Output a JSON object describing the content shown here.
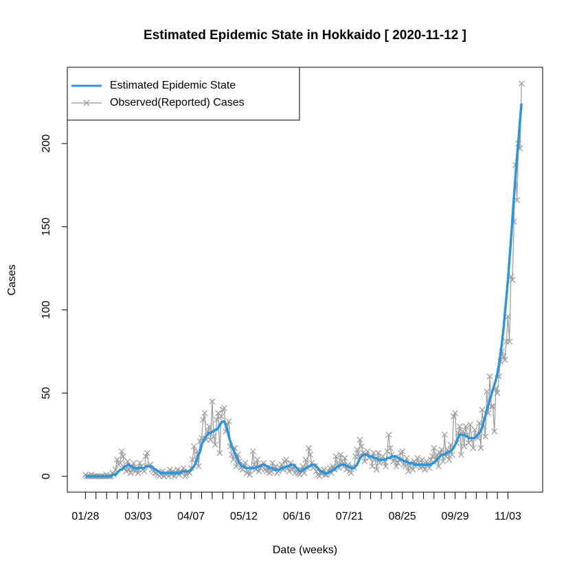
{
  "chart_data": {
    "type": "line",
    "title": "Estimated Epidemic State in Hokkaido [ 2020-11-12 ]",
    "x_label": "Date (weeks)",
    "y_label": "Cases",
    "x": [
      "01/28",
      "01/29",
      "01/30",
      "01/31",
      "02/01",
      "02/02",
      "02/03",
      "02/04",
      "02/05",
      "02/06",
      "02/07",
      "02/08",
      "02/09",
      "02/10",
      "02/11",
      "02/12",
      "02/13",
      "02/14",
      "02/15",
      "02/16",
      "02/17",
      "02/18",
      "02/19",
      "02/20",
      "02/21",
      "02/22",
      "02/23",
      "02/24",
      "02/25",
      "02/26",
      "02/27",
      "02/28",
      "02/29",
      "03/01",
      "03/02",
      "03/03",
      "03/04",
      "03/05",
      "03/06",
      "03/07",
      "03/08",
      "03/09",
      "03/10",
      "03/11",
      "03/12",
      "03/13",
      "03/14",
      "03/15",
      "03/16",
      "03/17",
      "03/18",
      "03/19",
      "03/20",
      "03/21",
      "03/22",
      "03/23",
      "03/24",
      "03/25",
      "03/26",
      "03/27",
      "03/28",
      "03/29",
      "03/30",
      "03/31",
      "04/01",
      "04/02",
      "04/03",
      "04/04",
      "04/05",
      "04/06",
      "04/07",
      "04/08",
      "04/09",
      "04/10",
      "04/11",
      "04/12",
      "04/13",
      "04/14",
      "04/15",
      "04/16",
      "04/17",
      "04/18",
      "04/19",
      "04/20",
      "04/21",
      "04/22",
      "04/23",
      "04/24",
      "04/25",
      "04/26",
      "04/27",
      "04/28",
      "04/29",
      "04/30",
      "05/01",
      "05/02",
      "05/03",
      "05/04",
      "05/05",
      "05/06",
      "05/07",
      "05/08",
      "05/09",
      "05/10",
      "05/11",
      "05/12",
      "05/13",
      "05/14",
      "05/15",
      "05/16",
      "05/17",
      "05/18",
      "05/19",
      "05/20",
      "05/21",
      "05/22",
      "05/23",
      "05/24",
      "05/25",
      "05/26",
      "05/27",
      "05/28",
      "05/29",
      "05/30",
      "05/31",
      "06/01",
      "06/02",
      "06/03",
      "06/04",
      "06/05",
      "06/06",
      "06/07",
      "06/08",
      "06/09",
      "06/10",
      "06/11",
      "06/12",
      "06/13",
      "06/14",
      "06/15",
      "06/16",
      "06/17",
      "06/18",
      "06/19",
      "06/20",
      "06/21",
      "06/22",
      "06/23",
      "06/24",
      "06/25",
      "06/26",
      "06/27",
      "06/28",
      "06/29",
      "06/30",
      "07/01",
      "07/02",
      "07/03",
      "07/04",
      "07/05",
      "07/06",
      "07/07",
      "07/08",
      "07/09",
      "07/10",
      "07/11",
      "07/12",
      "07/13",
      "07/14",
      "07/15",
      "07/16",
      "07/17",
      "07/18",
      "07/19",
      "07/20",
      "07/21",
      "07/22",
      "07/23",
      "07/24",
      "07/25",
      "07/26",
      "07/27",
      "07/28",
      "07/29",
      "07/30",
      "07/31",
      "08/01",
      "08/02",
      "08/03",
      "08/04",
      "08/05",
      "08/06",
      "08/07",
      "08/08",
      "08/09",
      "08/10",
      "08/11",
      "08/12",
      "08/13",
      "08/14",
      "08/15",
      "08/16",
      "08/17",
      "08/18",
      "08/19",
      "08/20",
      "08/21",
      "08/22",
      "08/23",
      "08/24",
      "08/25",
      "08/26",
      "08/27",
      "08/28",
      "08/29",
      "08/30",
      "08/31",
      "09/01",
      "09/02",
      "09/03",
      "09/04",
      "09/05",
      "09/06",
      "09/07",
      "09/08",
      "09/09",
      "09/10",
      "09/11",
      "09/12",
      "09/13",
      "09/14",
      "09/15",
      "09/16",
      "09/17",
      "09/18",
      "09/19",
      "09/20",
      "09/21",
      "09/22",
      "09/23",
      "09/24",
      "09/25",
      "09/26",
      "09/27",
      "09/28",
      "09/29",
      "09/30",
      "10/01",
      "10/02",
      "10/03",
      "10/04",
      "10/05",
      "10/06",
      "10/07",
      "10/08",
      "10/09",
      "10/10",
      "10/11",
      "10/12",
      "10/13",
      "10/14",
      "10/15",
      "10/16",
      "10/17",
      "10/18",
      "10/19",
      "10/20",
      "10/21",
      "10/22",
      "10/23",
      "10/24",
      "10/25",
      "10/26",
      "10/27",
      "10/28",
      "10/29",
      "10/30",
      "10/31",
      "11/01",
      "11/02",
      "11/03",
      "11/04",
      "11/05",
      "11/06",
      "11/07",
      "11/08",
      "11/09",
      "11/10",
      "11/11",
      "11/12"
    ],
    "series": [
      {
        "name": "Estimated Epidemic State",
        "color": "#2b95de",
        "values": [
          0,
          0,
          0,
          0,
          0,
          0,
          0,
          0,
          0,
          0,
          0,
          0,
          0,
          0,
          0,
          0,
          0,
          0,
          1,
          1,
          1,
          2,
          3,
          4,
          4,
          5,
          6,
          6,
          7,
          7,
          6,
          6,
          5,
          5,
          5,
          5,
          5,
          5,
          5,
          5,
          6,
          6,
          6,
          6,
          6,
          5,
          4,
          4,
          3,
          3,
          2,
          2,
          2,
          2,
          2,
          2,
          2,
          2,
          2,
          2,
          2,
          2,
          2,
          2,
          3,
          3,
          3,
          3,
          3,
          3,
          4,
          5,
          6,
          8,
          10,
          13,
          15,
          19,
          21,
          23,
          24,
          25,
          26,
          26,
          27,
          27,
          28,
          28,
          29,
          31,
          32,
          33,
          33,
          31,
          28,
          24,
          21,
          18,
          16,
          14,
          12,
          10,
          8,
          7,
          6,
          6,
          5,
          5,
          5,
          5,
          5,
          5,
          5,
          5,
          6,
          6,
          6,
          7,
          7,
          7,
          6,
          6,
          5,
          5,
          5,
          4,
          4,
          4,
          4,
          4,
          5,
          5,
          5,
          6,
          6,
          6,
          7,
          7,
          7,
          6,
          5,
          4,
          3,
          3,
          4,
          4,
          5,
          5,
          6,
          6,
          7,
          7,
          7,
          6,
          5,
          4,
          3,
          3,
          2,
          2,
          2,
          2,
          3,
          3,
          4,
          4,
          5,
          6,
          6,
          7,
          7,
          7,
          7,
          6,
          6,
          6,
          5,
          5,
          5,
          6,
          7,
          9,
          11,
          12,
          13,
          13,
          13,
          13,
          12,
          12,
          12,
          11,
          11,
          11,
          10,
          10,
          10,
          10,
          10,
          10,
          11,
          11,
          11,
          12,
          12,
          12,
          12,
          11,
          11,
          10,
          10,
          9,
          9,
          9,
          8,
          8,
          8,
          8,
          7,
          7,
          7,
          7,
          7,
          7,
          7,
          7,
          7,
          7,
          7,
          7,
          8,
          8,
          9,
          10,
          11,
          12,
          13,
          13,
          13,
          14,
          14,
          15,
          15,
          16,
          17,
          19,
          21,
          23,
          25,
          25,
          25,
          25,
          24,
          24,
          23,
          23,
          23,
          23,
          23,
          24,
          25,
          26,
          27,
          30,
          33,
          36,
          40,
          43,
          46,
          49,
          52,
          55,
          58,
          62,
          67,
          73,
          80,
          88,
          98,
          108,
          118,
          130,
          142,
          155,
          168,
          180,
          192,
          202,
          214,
          224
        ]
      },
      {
        "name": "Observed(Reported) Cases",
        "color": "#a0a0a0",
        "values": [
          1,
          0,
          0,
          0,
          1,
          0,
          0,
          0,
          0,
          0,
          0,
          0,
          0,
          0,
          1,
          0,
          0,
          0,
          2,
          1,
          4,
          10,
          7,
          8,
          15,
          12,
          5,
          3,
          9,
          4,
          2,
          4,
          8,
          3,
          5,
          2,
          8,
          6,
          4,
          3,
          12,
          14,
          6,
          7,
          4,
          3,
          2,
          2,
          1,
          0,
          1,
          3,
          0,
          2,
          1,
          0,
          4,
          1,
          3,
          0,
          2,
          4,
          1,
          3,
          2,
          5,
          0,
          1,
          3,
          2,
          5,
          10,
          18,
          8,
          15,
          6,
          21,
          23,
          34,
          38,
          22,
          27,
          30,
          22,
          45,
          24,
          19,
          34,
          38,
          14,
          36,
          40,
          41,
          27,
          31,
          33,
          18,
          13,
          10,
          17,
          6,
          13,
          9,
          5,
          4,
          7,
          8,
          2,
          3,
          1,
          5,
          15,
          7,
          4,
          10,
          3,
          5,
          6,
          8,
          4,
          3,
          5,
          2,
          3,
          8,
          4,
          6,
          2,
          3,
          5,
          7,
          4,
          9,
          10,
          5,
          3,
          8,
          4,
          6,
          2,
          3,
          2,
          1,
          4,
          6,
          2,
          10,
          5,
          17,
          13,
          8,
          5,
          6,
          3,
          1,
          0,
          2,
          2,
          4,
          1,
          1,
          3,
          5,
          2,
          6,
          4,
          12,
          8,
          5,
          13,
          9,
          6,
          11,
          4,
          7,
          3,
          2,
          6,
          5,
          12,
          16,
          12,
          22,
          18,
          14,
          9,
          13,
          15,
          11,
          12,
          6,
          14,
          10,
          4,
          14,
          8,
          11,
          12,
          9,
          6,
          15,
          25,
          17,
          13,
          9,
          11,
          6,
          8,
          10,
          14,
          15,
          7,
          6,
          11,
          3,
          8,
          5,
          4,
          9,
          6,
          11,
          8,
          5,
          10,
          6,
          4,
          9,
          7,
          5,
          10,
          12,
          17,
          10,
          13,
          6,
          14,
          16,
          9,
          25,
          12,
          16,
          10,
          19,
          13,
          36,
          38,
          20,
          26,
          30,
          13,
          27,
          18,
          30,
          25,
          20,
          31,
          22,
          17,
          28,
          24,
          23,
          32,
          17,
          40,
          30,
          24,
          51,
          38,
          60,
          42,
          42,
          27,
          53,
          50,
          60,
          69,
          75,
          72,
          70,
          81,
          96,
          81,
          120,
          118,
          153,
          187,
          166,
          200,
          197,
          236
        ]
      }
    ],
    "xlim": [
      "01/16",
      "11/26"
    ],
    "xticks": [
      "01/28",
      {
        "value": "02/04",
        "label": null
      },
      {
        "value": "02/11",
        "label": null
      },
      {
        "value": "02/18",
        "label": null
      },
      {
        "value": "02/25",
        "label": null
      },
      "03/03",
      {
        "value": "03/10",
        "label": null
      },
      {
        "value": "03/17",
        "label": null
      },
      {
        "value": "03/24",
        "label": null
      },
      {
        "value": "03/31",
        "label": null
      },
      "04/07",
      {
        "value": "04/14",
        "label": null
      },
      {
        "value": "04/21",
        "label": null
      },
      {
        "value": "04/28",
        "label": null
      },
      {
        "value": "05/05",
        "label": null
      },
      "05/12",
      {
        "value": "05/19",
        "label": null
      },
      {
        "value": "05/26",
        "label": null
      },
      {
        "value": "06/02",
        "label": null
      },
      {
        "value": "06/09",
        "label": null
      },
      "06/16",
      {
        "value": "06/23",
        "label": null
      },
      {
        "value": "06/30",
        "label": null
      },
      {
        "value": "07/07",
        "label": null
      },
      {
        "value": "07/14",
        "label": null
      },
      "07/21",
      {
        "value": "07/28",
        "label": null
      },
      {
        "value": "08/04",
        "label": null
      },
      {
        "value": "08/11",
        "label": null
      },
      {
        "value": "08/18",
        "label": null
      },
      "08/25",
      {
        "value": "09/01",
        "label": null
      },
      {
        "value": "09/08",
        "label": null
      },
      {
        "value": "09/15",
        "label": null
      },
      {
        "value": "09/22",
        "label": null
      },
      "09/29",
      {
        "value": "10/06",
        "label": null
      },
      {
        "value": "10/13",
        "label": null
      },
      {
        "value": "10/20",
        "label": null
      },
      {
        "value": "10/27",
        "label": null
      },
      "11/03"
    ],
    "ylim": [
      -9.5,
      245.8
    ],
    "yticks": [
      0,
      50,
      100,
      150,
      200
    ],
    "grid": false,
    "legend": "top-left"
  }
}
